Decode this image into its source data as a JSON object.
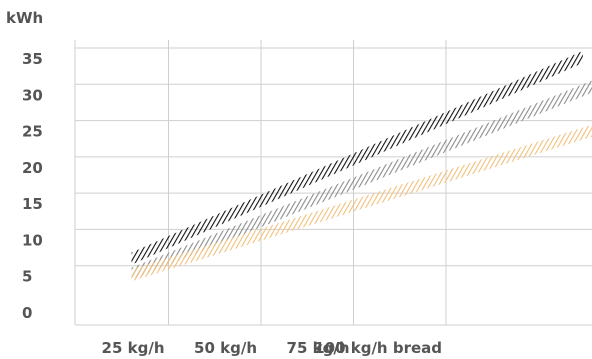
{
  "chart_data": {
    "type": "line",
    "title": "",
    "ylabel": "kWh",
    "xlabel": "",
    "ylim": [
      0,
      35
    ],
    "yticks": [
      "0",
      "5",
      "10",
      "15",
      "20",
      "25",
      "30",
      "35"
    ],
    "x_ticks": [
      {
        "value": 25,
        "label": "25 kg/h"
      },
      {
        "value": 50,
        "label": "50 kg/h"
      },
      {
        "value": 75,
        "label": "75 kg/h"
      },
      {
        "value": 100,
        "label": "100 kg/h bread"
      }
    ],
    "grid": true,
    "series": [
      {
        "color": "#111111",
        "x": [
          15,
          137
        ],
        "y": [
          7.5,
          35.3
        ]
      },
      {
        "color": "#8c8c8c",
        "x": [
          15,
          140
        ],
        "y": [
          5.4,
          31.3
        ]
      },
      {
        "color": "#f0c07c",
        "x": [
          15,
          140
        ],
        "y": [
          5.2,
          25.2
        ]
      }
    ]
  }
}
